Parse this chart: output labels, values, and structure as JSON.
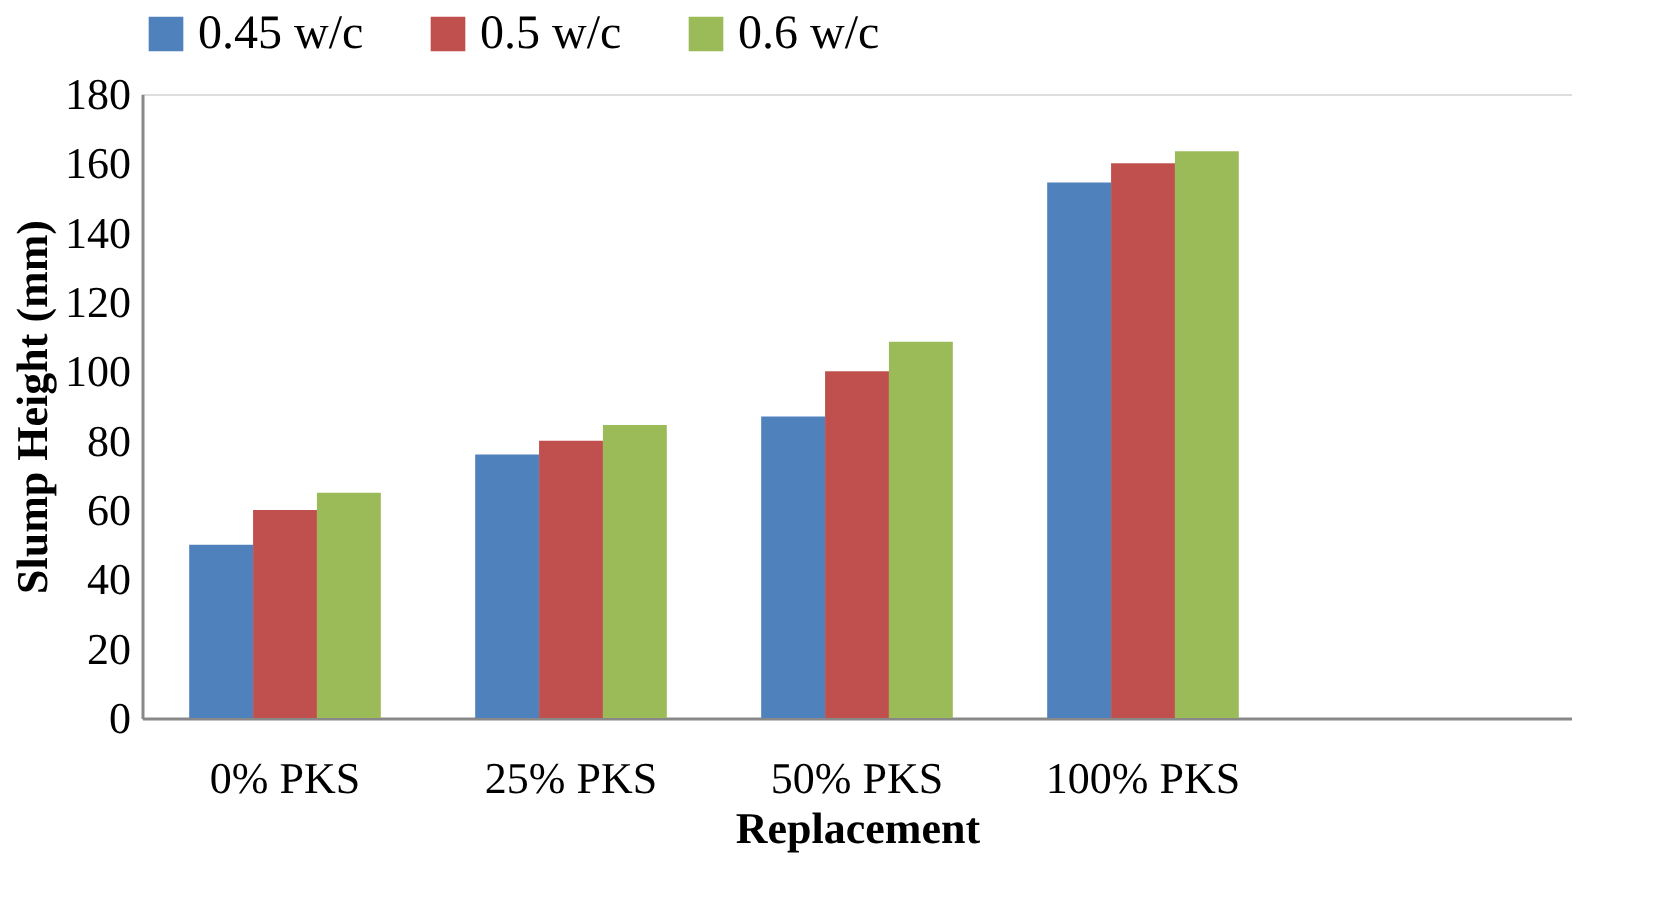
{
  "chart_data": {
    "type": "bar",
    "xlabel": "Replacement",
    "ylabel": "Slump Height (mm)",
    "categories": [
      "0% PKS",
      "25% PKS",
      "50% PKS",
      "100% PKS",
      null
    ],
    "series": [
      {
        "name": "0.45 w/c",
        "color": "#4f81bd",
        "values": [
          50,
          76,
          87,
          154.5,
          null
        ]
      },
      {
        "name": "0.5 w/c",
        "color": "#c0504d",
        "values": [
          60,
          80,
          100,
          160,
          null
        ]
      },
      {
        "name": "0.6 w/c",
        "color": "#9bbb59",
        "values": [
          65,
          84.5,
          108.5,
          163.5,
          null
        ]
      }
    ],
    "ylim": [
      0,
      180
    ],
    "yticks": [
      0,
      20,
      40,
      60,
      80,
      100,
      120,
      140,
      160,
      180
    ],
    "grid": false,
    "legend": "top"
  }
}
